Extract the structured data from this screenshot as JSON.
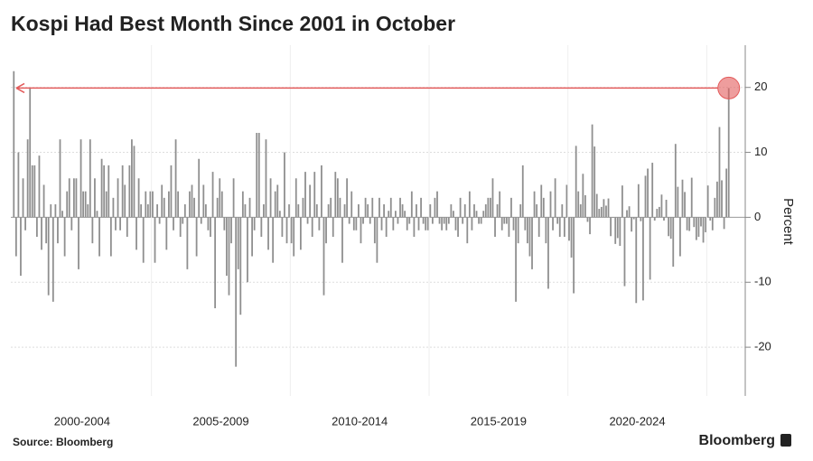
{
  "chart_data": {
    "type": "bar",
    "title": "Kospi Had Best Month Since 2001 in October",
    "y_label": "Percent",
    "source": "Source: Bloomberg",
    "brand": "Bloomberg",
    "color": "#8f8f8f",
    "highlight_color": "#e35b5b",
    "ylim": [
      -27.5,
      26.5
    ],
    "yticks": [
      -20,
      -10,
      0,
      10,
      20
    ],
    "grid": true,
    "groups": [
      {
        "label": "2000-2004",
        "values": [
          22.5,
          -6,
          10,
          -9,
          6,
          -2,
          12,
          20,
          8,
          8,
          -3,
          9.5,
          -5,
          5,
          -4,
          -12,
          2,
          -13,
          2,
          -4,
          12,
          1,
          -6,
          4,
          6,
          -2,
          6,
          6,
          -8,
          12,
          4,
          4,
          2,
          12,
          -4,
          6,
          1,
          -6,
          9,
          8,
          4,
          8,
          -6,
          3,
          -2,
          6,
          -2,
          8,
          5,
          -3,
          8,
          12,
          11,
          -5,
          6,
          2,
          -7,
          4,
          2,
          4
        ]
      },
      {
        "label": "2005-2009",
        "values": [
          4,
          -7,
          2,
          -1,
          5,
          3,
          -5,
          4,
          8,
          -2,
          12,
          4,
          -3,
          -1,
          2,
          -8,
          4,
          5,
          3,
          -6,
          9,
          -1,
          5,
          2,
          -2,
          -3,
          7,
          -14,
          3,
          6,
          4,
          -2,
          -9,
          -12,
          -4,
          6,
          -23,
          -8,
          -15,
          4,
          2,
          -10,
          3,
          -6,
          -2,
          13,
          13,
          -3,
          2,
          12,
          -5,
          6,
          -7,
          4,
          5,
          1,
          -3,
          10,
          -4,
          2
        ]
      },
      {
        "label": "2010-2014",
        "values": [
          -4,
          -6,
          6,
          2,
          -5,
          3,
          7,
          -1,
          5,
          -3,
          7,
          2,
          -2,
          8,
          -12,
          -4,
          2,
          3,
          -3,
          7,
          6,
          3,
          -7,
          2,
          6,
          -1,
          4,
          -2,
          -2,
          2,
          -4,
          -1,
          3,
          2,
          -1,
          3,
          -4,
          -7,
          3,
          -2,
          2,
          -3,
          1,
          3,
          -2,
          1,
          -1,
          3,
          2,
          1,
          -2,
          -1,
          4,
          -3,
          2,
          -2,
          3,
          -1,
          -2,
          -2
        ]
      },
      {
        "label": "2015-2019",
        "values": [
          2,
          -1,
          3,
          4,
          -1,
          -2,
          -1,
          -2,
          -1,
          2,
          1,
          -2,
          -3,
          3,
          -1,
          2,
          -4,
          4,
          -2,
          2,
          1,
          -1,
          -1,
          1,
          2,
          3,
          3,
          6,
          -3,
          2,
          4,
          -2,
          -1,
          -1,
          -3,
          3,
          -2,
          -13,
          -4,
          2,
          8,
          -2,
          -4,
          -6,
          -8,
          4,
          2,
          -3,
          5,
          3,
          -4,
          -11,
          4,
          -2,
          6,
          -1,
          -3,
          2,
          -3,
          5
        ]
      },
      {
        "label": "2020-2024",
        "values": [
          -3.6,
          -6.2,
          -11.7,
          11,
          4,
          2,
          6.7,
          3.4,
          -0.7,
          -2.6,
          14.3,
          10.9,
          3.6,
          1.3,
          1.6,
          2.8,
          1.8,
          2.9,
          -2.9,
          -0.1,
          -4.1,
          -3.2,
          -4.4,
          4.9,
          -10.6,
          1.1,
          1.7,
          -2.2,
          -0.3,
          -13.2,
          5.1,
          -0.6,
          -12.8,
          6.4,
          7.5,
          -9.6,
          8.4,
          -0.5,
          1.3,
          1.6,
          3.5,
          -0.5,
          2.7,
          -2.9,
          -3.3,
          -7.6,
          11.3,
          4.7,
          -6,
          5.8,
          3.9,
          -2,
          -2.1,
          6.1,
          -1.5,
          -3.5,
          -3,
          -1.4,
          -3.9,
          -2.3
        ]
      },
      {
        "label": null,
        "values": [
          4.9,
          -0.5,
          -2,
          3,
          5.5,
          13.9,
          5.7,
          -1.8,
          7.5,
          19.9
        ]
      }
    ]
  }
}
